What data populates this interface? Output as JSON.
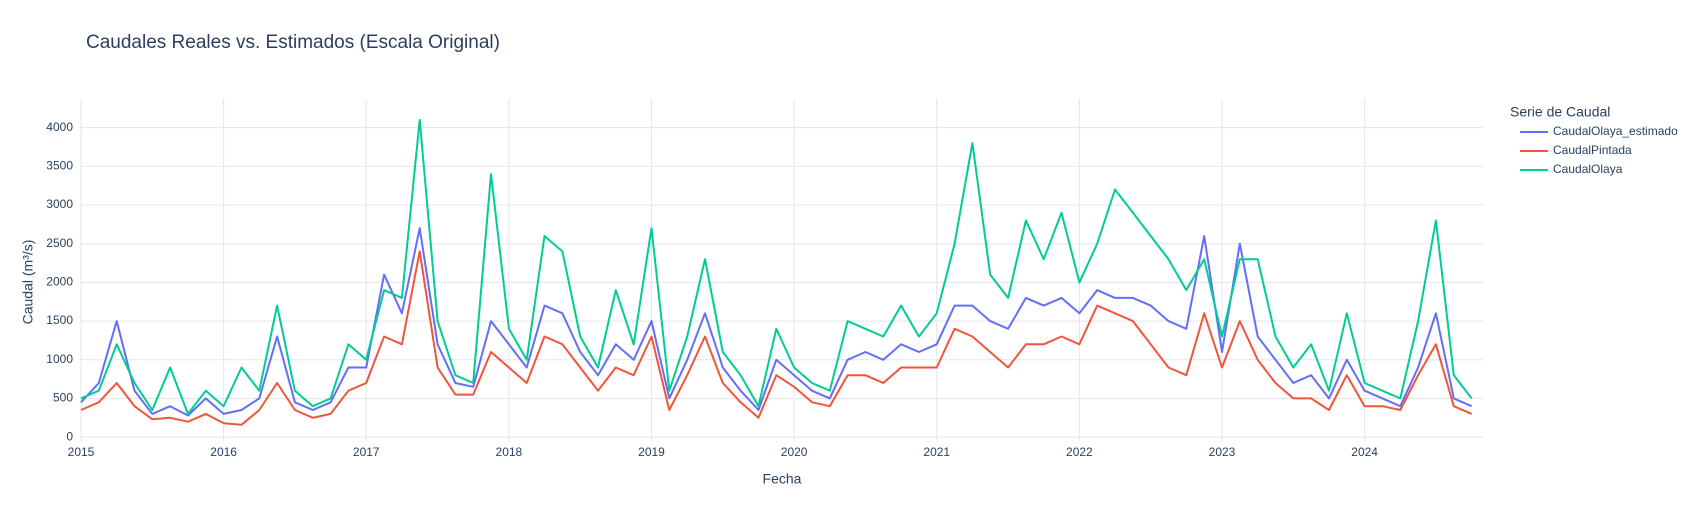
{
  "chart_data": {
    "type": "line",
    "title": "Caudales Reales vs. Estimados (Escala Original)",
    "x_label": "Fecha",
    "y_label": "Caudal (m³/s)",
    "legend_title": "Serie de Caudal",
    "legend_position": "right",
    "grid": true,
    "xlim": [
      2015,
      2024.83
    ],
    "ylim": [
      -50,
      4370
    ],
    "xticks": [
      2015,
      2016,
      2017,
      2018,
      2019,
      2020,
      2021,
      2022,
      2023,
      2024
    ],
    "yticks": [
      0,
      500,
      1000,
      1500,
      2000,
      2500,
      3000,
      3500,
      4000
    ],
    "x": [
      2015,
      2015.125,
      2015.25,
      2015.375,
      2015.5,
      2015.625,
      2015.75,
      2015.875,
      2016,
      2016.125,
      2016.25,
      2016.375,
      2016.5,
      2016.625,
      2016.75,
      2016.875,
      2017,
      2017.125,
      2017.25,
      2017.375,
      2017.5,
      2017.625,
      2017.75,
      2017.875,
      2018,
      2018.125,
      2018.25,
      2018.375,
      2018.5,
      2018.625,
      2018.75,
      2018.875,
      2019,
      2019.125,
      2019.25,
      2019.375,
      2019.5,
      2019.625,
      2019.75,
      2019.875,
      2020,
      2020.125,
      2020.25,
      2020.375,
      2020.5,
      2020.625,
      2020.75,
      2020.875,
      2021,
      2021.125,
      2021.25,
      2021.375,
      2021.5,
      2021.625,
      2021.75,
      2021.875,
      2022,
      2022.125,
      2022.25,
      2022.375,
      2022.5,
      2022.625,
      2022.75,
      2022.875,
      2023,
      2023.125,
      2023.25,
      2023.375,
      2023.5,
      2023.625,
      2023.75,
      2023.875,
      2024,
      2024.125,
      2024.25,
      2024.375,
      2024.5,
      2024.625,
      2024.75
    ],
    "series": [
      {
        "name": "CaudalOlaya_estimado",
        "color": "#636efa",
        "values": [
          450,
          700,
          1500,
          600,
          300,
          400,
          280,
          500,
          300,
          350,
          500,
          1300,
          450,
          350,
          450,
          900,
          900,
          2100,
          1600,
          2700,
          1200,
          700,
          650,
          1500,
          1200,
          900,
          1700,
          1600,
          1100,
          800,
          1200,
          1000,
          1500,
          500,
          1000,
          1600,
          900,
          600,
          350,
          1000,
          800,
          600,
          500,
          1000,
          1100,
          1000,
          1200,
          1100,
          1200,
          1700,
          1700,
          1500,
          1400,
          1800,
          1700,
          1800,
          1600,
          1900,
          1800,
          1800,
          1700,
          1500,
          1400,
          2600,
          1100,
          2500,
          1300,
          1000,
          700,
          800,
          500,
          1000,
          600,
          500,
          400,
          900,
          1600,
          500,
          400
        ]
      },
      {
        "name": "CaudalPintada",
        "color": "#ef553b",
        "values": [
          350,
          450,
          700,
          400,
          230,
          250,
          200,
          300,
          180,
          160,
          350,
          700,
          350,
          250,
          300,
          600,
          700,
          1300,
          1200,
          2400,
          900,
          550,
          550,
          1100,
          900,
          700,
          1300,
          1200,
          900,
          600,
          900,
          800,
          1300,
          350,
          800,
          1300,
          700,
          450,
          250,
          800,
          650,
          450,
          400,
          800,
          800,
          700,
          900,
          900,
          900,
          1400,
          1300,
          1100,
          900,
          1200,
          1200,
          1300,
          1200,
          1700,
          1600,
          1500,
          1200,
          900,
          800,
          1600,
          900,
          1500,
          1000,
          700,
          500,
          500,
          350,
          800,
          400,
          400,
          350,
          800,
          1200,
          400,
          300
        ]
      },
      {
        "name": "CaudalOlaya",
        "color": "#00cc96",
        "values": [
          500,
          600,
          1200,
          700,
          350,
          900,
          300,
          600,
          400,
          900,
          600,
          1700,
          600,
          400,
          500,
          1200,
          1000,
          1900,
          1800,
          4100,
          1500,
          800,
          700,
          3400,
          1400,
          1000,
          2600,
          2400,
          1300,
          900,
          1900,
          1200,
          2700,
          600,
          1300,
          2300,
          1100,
          800,
          400,
          1400,
          900,
          700,
          600,
          1500,
          1400,
          1300,
          1700,
          1300,
          1600,
          2500,
          3800,
          2100,
          1800,
          2800,
          2300,
          2900,
          2000,
          2500,
          3200,
          2900,
          2600,
          2300,
          1900,
          2300,
          1300,
          2300,
          2300,
          1300,
          900,
          1200,
          600,
          1600,
          700,
          600,
          500,
          1500,
          2800,
          800,
          500
        ]
      }
    ]
  }
}
